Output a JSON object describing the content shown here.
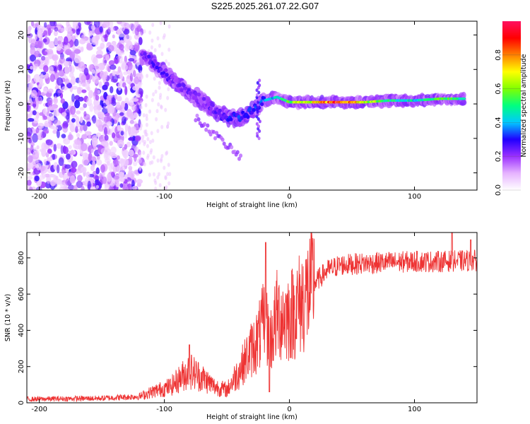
{
  "figure_title": "S225.2025.261.07.22.G07",
  "chart_data": [
    {
      "type": "heatmap",
      "title": "",
      "xlabel": "Height of straight line (km)",
      "ylabel": "Frequency (Hz)",
      "xlim": [
        -210,
        150
      ],
      "ylim": [
        -25,
        24
      ],
      "xticks": [
        -200,
        -100,
        0,
        100
      ],
      "yticks": [
        -20,
        -10,
        0,
        10,
        20
      ],
      "colorbar": {
        "label": "Normalized spectral amplitude",
        "range": [
          0,
          1
        ],
        "ticks": [
          0.0,
          0.2,
          0.4,
          0.6,
          0.8
        ],
        "tick_labels": [
          "0.0",
          "0.2",
          "0.4",
          "0.6",
          "0.8"
        ],
        "colors": [
          "#ffffff",
          "#e6b3ff",
          "#9b30ff",
          "#2000ff",
          "#00c8ff",
          "#00ff80",
          "#80ff00",
          "#ffff00",
          "#ff8000",
          "#ff0000",
          "#ff1060"
        ]
      },
      "ridge": [
        {
          "x": -118,
          "y": 14,
          "a": 0.22
        },
        {
          "x": -110,
          "y": 12,
          "a": 0.25
        },
        {
          "x": -100,
          "y": 9,
          "a": 0.25
        },
        {
          "x": -90,
          "y": 6,
          "a": 0.22
        },
        {
          "x": -80,
          "y": 3,
          "a": 0.22
        },
        {
          "x": -70,
          "y": 1,
          "a": 0.22
        },
        {
          "x": -60,
          "y": -2,
          "a": 0.25
        },
        {
          "x": -50,
          "y": -4,
          "a": 0.28
        },
        {
          "x": -40,
          "y": -4,
          "a": 0.3
        },
        {
          "x": -30,
          "y": -2,
          "a": 0.3
        },
        {
          "x": -20,
          "y": 1,
          "a": 0.35
        },
        {
          "x": -10,
          "y": 2,
          "a": 0.45
        },
        {
          "x": 0,
          "y": 0.5,
          "a": 0.55
        },
        {
          "x": 20,
          "y": 0.5,
          "a": 0.75
        },
        {
          "x": 40,
          "y": 0.5,
          "a": 0.9
        },
        {
          "x": 60,
          "y": 0.5,
          "a": 0.7
        },
        {
          "x": 80,
          "y": 1,
          "a": 0.5
        },
        {
          "x": 100,
          "y": 1,
          "a": 0.45
        },
        {
          "x": 120,
          "y": 1.5,
          "a": 0.55
        },
        {
          "x": 140,
          "y": 1.5,
          "a": 0.5
        }
      ]
    },
    {
      "type": "line",
      "title": "",
      "xlabel": "Height of straight line (km)",
      "ylabel": "SNR (10 * v/v)",
      "xlim": [
        -210,
        150
      ],
      "ylim": [
        0,
        940
      ],
      "xticks": [
        -200,
        -100,
        0,
        100
      ],
      "yticks": [
        0,
        200,
        400,
        600,
        800
      ],
      "line_color": "#ee3333",
      "envelope": [
        {
          "x": -210,
          "y": 20
        },
        {
          "x": -150,
          "y": 25
        },
        {
          "x": -120,
          "y": 35
        },
        {
          "x": -110,
          "y": 60
        },
        {
          "x": -95,
          "y": 90
        },
        {
          "x": -80,
          "y": 180
        },
        {
          "x": -70,
          "y": 140
        },
        {
          "x": -60,
          "y": 90
        },
        {
          "x": -50,
          "y": 70
        },
        {
          "x": -40,
          "y": 180
        },
        {
          "x": -30,
          "y": 300
        },
        {
          "x": -25,
          "y": 350
        },
        {
          "x": -20,
          "y": 450
        },
        {
          "x": -15,
          "y": 350
        },
        {
          "x": -10,
          "y": 480
        },
        {
          "x": 0,
          "y": 480
        },
        {
          "x": 10,
          "y": 560
        },
        {
          "x": 20,
          "y": 660
        },
        {
          "x": 30,
          "y": 730
        },
        {
          "x": 40,
          "y": 760
        },
        {
          "x": 60,
          "y": 770
        },
        {
          "x": 80,
          "y": 775
        },
        {
          "x": 100,
          "y": 780
        },
        {
          "x": 120,
          "y": 780
        },
        {
          "x": 150,
          "y": 785
        }
      ],
      "spikes": [
        {
          "x": -19,
          "y": 885
        },
        {
          "x": -16,
          "y": 60
        },
        {
          "x": -80,
          "y": 320
        },
        {
          "x": 130,
          "y": 940
        },
        {
          "x": 145,
          "y": 900
        }
      ]
    }
  ]
}
